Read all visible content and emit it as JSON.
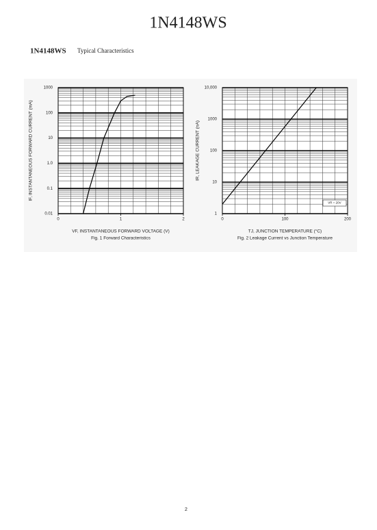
{
  "header": {
    "title": "1N4148WS",
    "part": "1N4148WS",
    "subtitle": "Typical Characteristics"
  },
  "footer": {
    "page": "2"
  },
  "chart_data": [
    {
      "type": "line",
      "log_y": true,
      "grid": true,
      "color": "#000000",
      "y_label": "IF, INSTANTANEOUS FORWARD CURRENT (mA)",
      "x_label": "VF, INSTANTANEOUS FORWARD VOLTAGE (V)",
      "caption": "Fig. 1  Forward Characteristics",
      "x": [
        0.4,
        0.5,
        0.62,
        0.73,
        0.9,
        1.0,
        1.1,
        1.23
      ],
      "values": [
        0.01,
        0.1,
        1,
        10,
        100,
        300,
        450,
        500
      ],
      "xlim": [
        0,
        2
      ],
      "xticks": [
        0,
        1,
        2
      ],
      "ylim": [
        0.01,
        1000
      ],
      "yticks": [
        0.01,
        0.1,
        {
          "value": 1,
          "label": "1.0"
        },
        10,
        100,
        1000
      ]
    },
    {
      "type": "line",
      "log_y": true,
      "grid": true,
      "color": "#000000",
      "y_label": "IR, LEAKAGE CURRENT (nA)",
      "x_label": "TJ, JUNCTION TEMPERATURE (°C)",
      "caption": "Fig. 2  Leakage Current vs Junction Temperature",
      "annotation": "VR = 20V",
      "x": [
        0,
        150
      ],
      "values": [
        2,
        10000
      ],
      "xlim": [
        0,
        200
      ],
      "xticks": [
        0,
        100,
        200
      ],
      "ylim": [
        1,
        10000
      ],
      "yticks": [
        1,
        10,
        100,
        1000,
        {
          "value": 10000,
          "label": "10,000"
        }
      ]
    }
  ]
}
